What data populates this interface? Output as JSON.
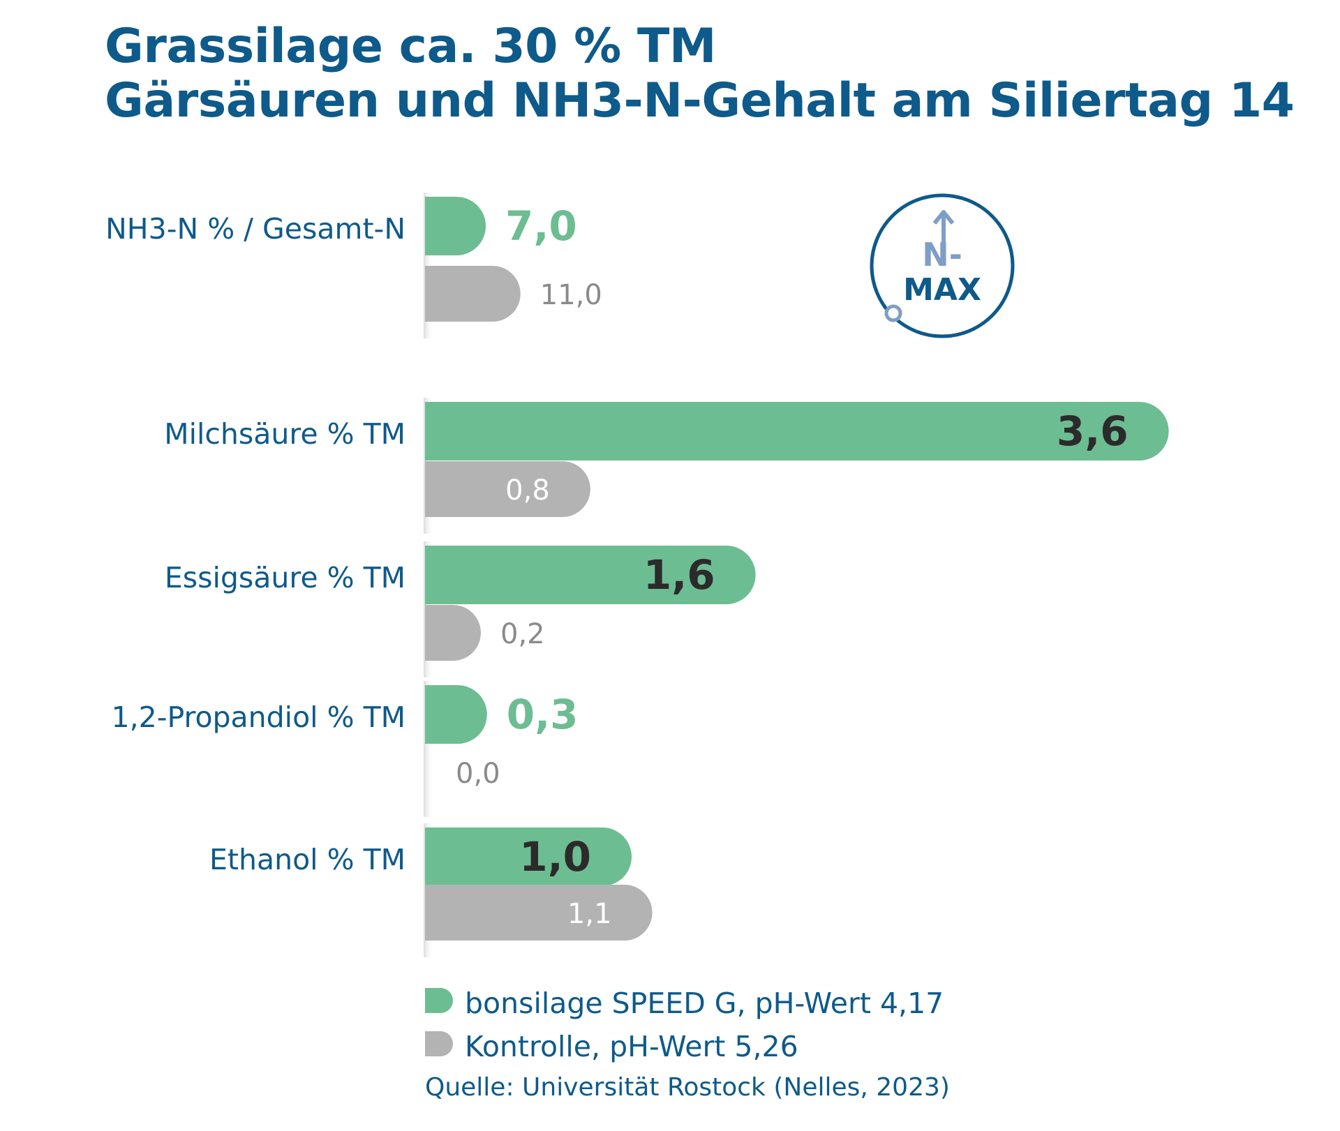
{
  "chart_data": {
    "type": "bar",
    "orientation": "horizontal",
    "title_lines": [
      "Grassilage ca. 30 % TM",
      "Gärsäuren und NH3-N-Gehalt am Siliertag 14"
    ],
    "groups": [
      {
        "label": "NH3-N % / Gesamt-N",
        "scale": 0.042,
        "values": [
          7.0,
          11.0
        ],
        "value_labels": [
          "7,0",
          "11,0"
        ]
      },
      {
        "label": "Milchsäure % TM",
        "scale": 1.0,
        "values": [
          3.6,
          0.8
        ],
        "value_labels": [
          "3,6",
          "0,8"
        ]
      },
      {
        "label": "Essigsäure % TM",
        "scale": 1.0,
        "values": [
          1.6,
          0.2
        ],
        "value_labels": [
          "1,6",
          "0,2"
        ]
      },
      {
        "label": "1,2-Propandiol % TM",
        "scale": 1.0,
        "values": [
          0.3,
          0.0
        ],
        "value_labels": [
          "0,3",
          "0,0"
        ]
      },
      {
        "label": "Ethanol % TM",
        "scale": 1.0,
        "values": [
          1.0,
          1.1
        ],
        "value_labels": [
          "1,0",
          "1,1"
        ]
      }
    ],
    "series": [
      {
        "name": "bonsilage SPEED G, pH-Wert 4,17",
        "color": "#6dbd92"
      },
      {
        "name": "Kontrolle, pH-Wert 5,26",
        "color": "#b3b3b3"
      }
    ],
    "source": "Quelle: Universität Rostock (Nelles, 2023)",
    "logo": {
      "line1": "N-",
      "line2": "MAX"
    }
  }
}
